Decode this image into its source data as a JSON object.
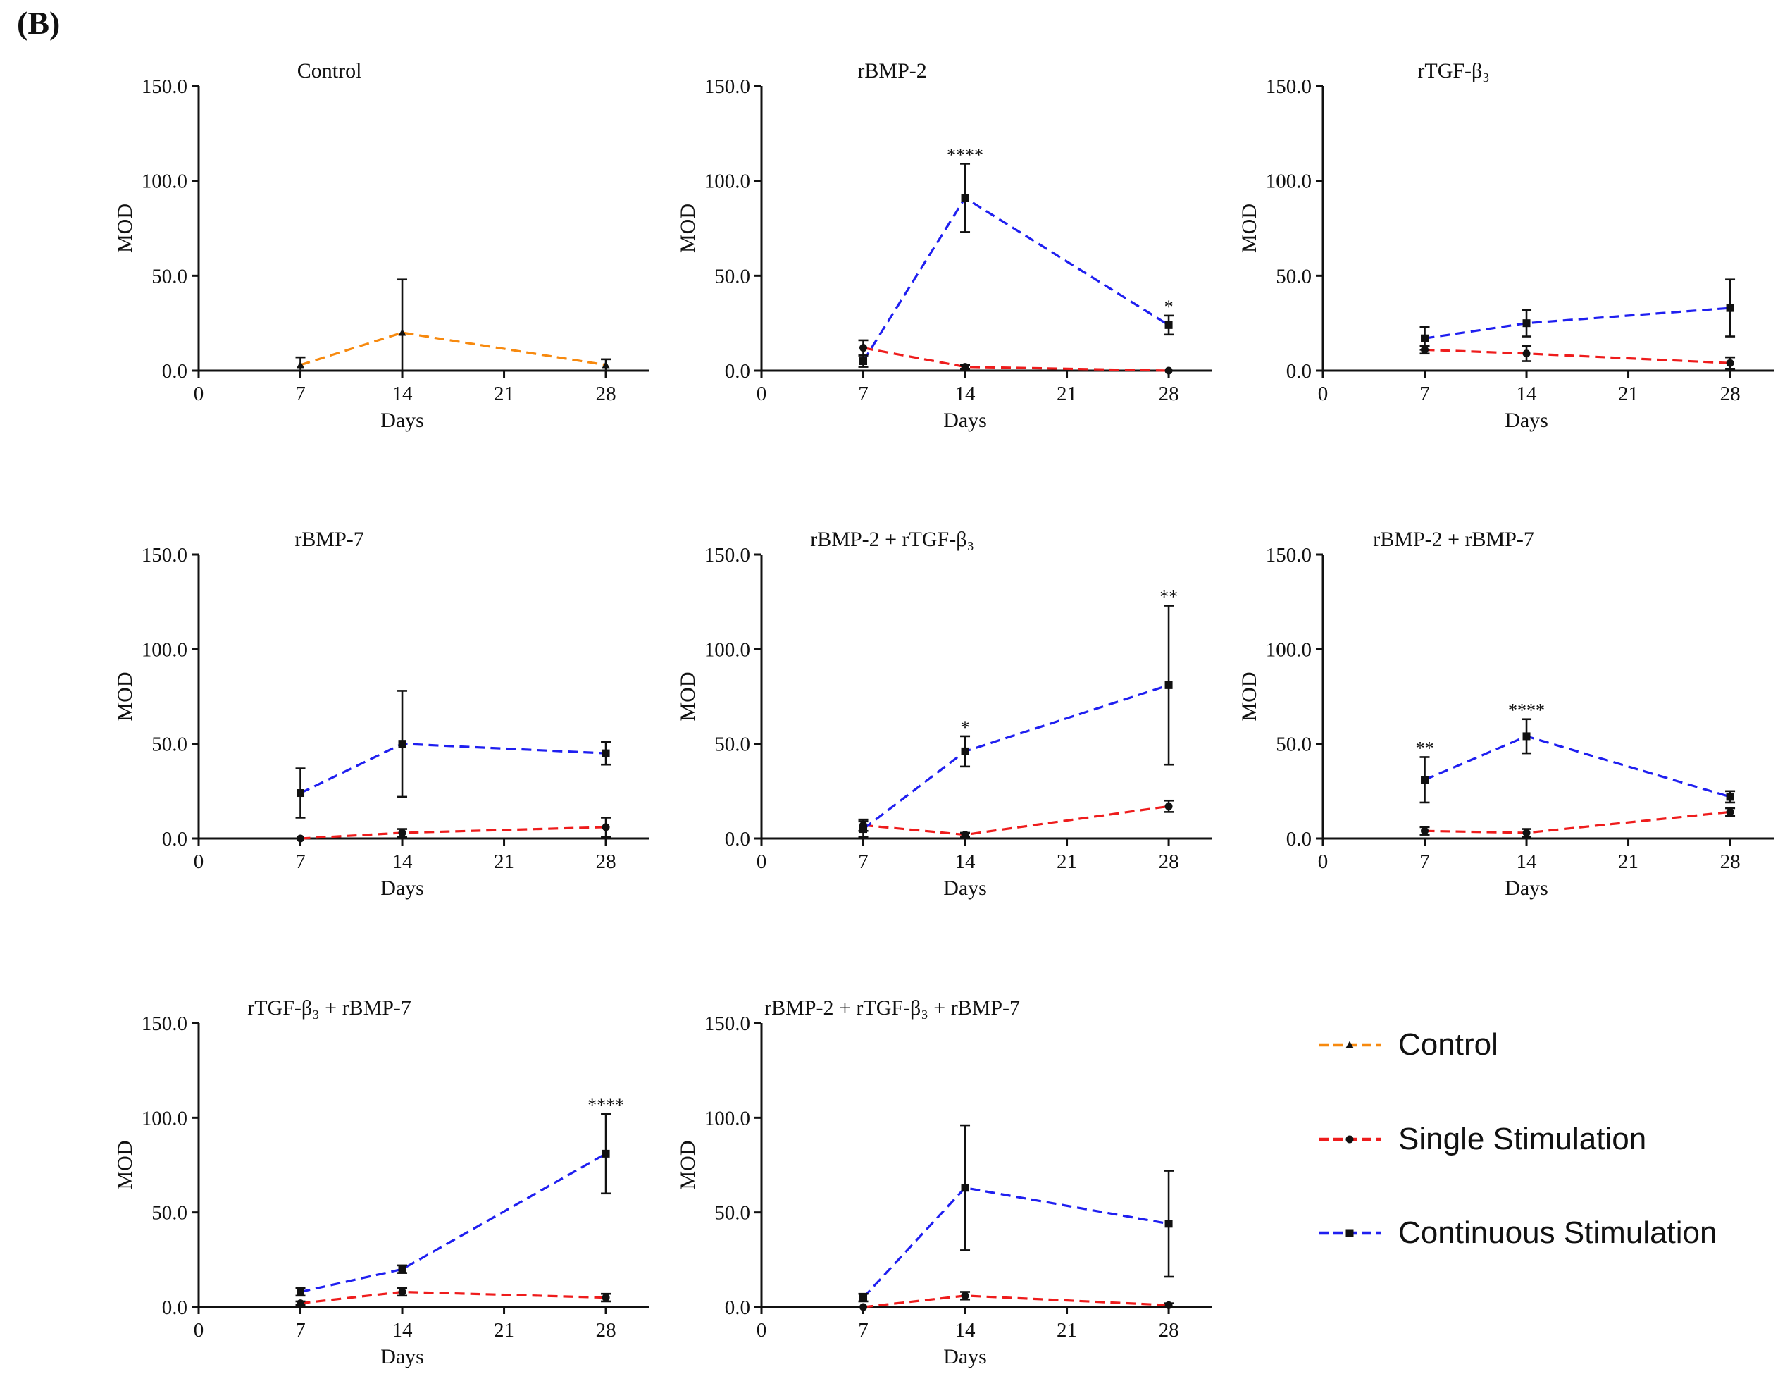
{
  "figure_label": "(B)",
  "colors": {
    "Control": "#f7890e",
    "Single Stimulation": "#ee1c1c",
    "Continuous Stimulation": "#1f1ff0",
    "axis": "#111111"
  },
  "legend": [
    {
      "name": "Control",
      "marker": "triangle"
    },
    {
      "name": "Single Stimulation",
      "marker": "circle"
    },
    {
      "name": "Continuous Stimulation",
      "marker": "square"
    }
  ],
  "chart_data": [
    {
      "type": "line",
      "title": "Control",
      "xlabel": "Days",
      "ylabel": "MOD",
      "xlim": [
        0,
        31
      ],
      "ylim": [
        0,
        150
      ],
      "xticks": [
        "0",
        "7",
        "14",
        "21",
        "28"
      ],
      "yticks": [
        "0.0",
        "50.0",
        "100.0",
        "150.0"
      ],
      "x": [
        7,
        14,
        28
      ],
      "series": [
        {
          "name": "Control",
          "values": [
            3,
            20,
            3
          ],
          "errors": [
            4,
            28,
            3
          ]
        }
      ],
      "annotations": []
    },
    {
      "type": "line",
      "title": "rBMP-2",
      "xlabel": "Days",
      "ylabel": "MOD",
      "xlim": [
        0,
        31
      ],
      "ylim": [
        0,
        150
      ],
      "xticks": [
        "0",
        "7",
        "14",
        "21",
        "28"
      ],
      "yticks": [
        "0.0",
        "50.0",
        "100.0",
        "150.0"
      ],
      "x": [
        7,
        14,
        28
      ],
      "series": [
        {
          "name": "Single Stimulation",
          "values": [
            12,
            2,
            0
          ],
          "errors": [
            4,
            1,
            0
          ]
        },
        {
          "name": "Continuous Stimulation",
          "values": [
            5,
            91,
            24
          ],
          "errors": [
            3,
            18,
            5
          ]
        }
      ],
      "annotations": [
        {
          "x": 14,
          "text": "****"
        },
        {
          "x": 28,
          "text": "*"
        }
      ]
    },
    {
      "type": "line",
      "title": "rTGF-β₃",
      "xlabel": "Days",
      "ylabel": "MOD",
      "xlim": [
        0,
        31
      ],
      "ylim": [
        0,
        150
      ],
      "xticks": [
        "0",
        "7",
        "14",
        "21",
        "28"
      ],
      "yticks": [
        "0.0",
        "50.0",
        "100.0",
        "150.0"
      ],
      "x": [
        7,
        14,
        28
      ],
      "series": [
        {
          "name": "Single Stimulation",
          "values": [
            11,
            9,
            4
          ],
          "errors": [
            2,
            4,
            3
          ]
        },
        {
          "name": "Continuous Stimulation",
          "values": [
            17,
            25,
            33
          ],
          "errors": [
            6,
            7,
            15
          ]
        }
      ],
      "annotations": []
    },
    {
      "type": "line",
      "title": "rBMP-7",
      "xlabel": "Days",
      "ylabel": "MOD",
      "xlim": [
        0,
        31
      ],
      "ylim": [
        0,
        150
      ],
      "xticks": [
        "0",
        "7",
        "14",
        "21",
        "28"
      ],
      "yticks": [
        "0.0",
        "50.0",
        "100.0",
        "150.0"
      ],
      "x": [
        7,
        14,
        28
      ],
      "series": [
        {
          "name": "Single Stimulation",
          "values": [
            0,
            3,
            6
          ],
          "errors": [
            0,
            2,
            5
          ]
        },
        {
          "name": "Continuous Stimulation",
          "values": [
            24,
            50,
            45
          ],
          "errors": [
            13,
            28,
            6
          ]
        }
      ],
      "annotations": []
    },
    {
      "type": "line",
      "title": "rBMP-2 + rTGF-β₃",
      "xlabel": "Days",
      "ylabel": "MOD",
      "xlim": [
        0,
        31
      ],
      "ylim": [
        0,
        150
      ],
      "xticks": [
        "0",
        "7",
        "14",
        "21",
        "28"
      ],
      "yticks": [
        "0.0",
        "50.0",
        "100.0",
        "150.0"
      ],
      "x": [
        7,
        14,
        28
      ],
      "series": [
        {
          "name": "Single Stimulation",
          "values": [
            7,
            2,
            17
          ],
          "errors": [
            3,
            1,
            3
          ]
        },
        {
          "name": "Continuous Stimulation",
          "values": [
            5,
            46,
            81
          ],
          "errors": [
            4,
            8,
            42
          ]
        }
      ],
      "annotations": [
        {
          "x": 14,
          "text": "*"
        },
        {
          "x": 28,
          "text": "**"
        }
      ]
    },
    {
      "type": "line",
      "title": "rBMP-2 + rBMP-7",
      "xlabel": "Days",
      "ylabel": "MOD",
      "xlim": [
        0,
        31
      ],
      "ylim": [
        0,
        150
      ],
      "xticks": [
        "0",
        "7",
        "14",
        "21",
        "28"
      ],
      "yticks": [
        "0.0",
        "50.0",
        "100.0",
        "150.0"
      ],
      "x": [
        7,
        14,
        28
      ],
      "series": [
        {
          "name": "Single Stimulation",
          "values": [
            4,
            3,
            14
          ],
          "errors": [
            2,
            2,
            2
          ]
        },
        {
          "name": "Continuous Stimulation",
          "values": [
            31,
            54,
            22
          ],
          "errors": [
            12,
            9,
            3
          ]
        }
      ],
      "annotations": [
        {
          "x": 7,
          "text": "**"
        },
        {
          "x": 14,
          "text": "****"
        }
      ]
    },
    {
      "type": "line",
      "title": "rTGF-β₃ + rBMP-7",
      "xlabel": "Days",
      "ylabel": "MOD",
      "xlim": [
        0,
        31
      ],
      "ylim": [
        0,
        150
      ],
      "xticks": [
        "0",
        "7",
        "14",
        "21",
        "28"
      ],
      "yticks": [
        "0.0",
        "50.0",
        "100.0",
        "150.0"
      ],
      "x": [
        7,
        14,
        28
      ],
      "series": [
        {
          "name": "Single Stimulation",
          "values": [
            2,
            8,
            5
          ],
          "errors": [
            1,
            2,
            2
          ]
        },
        {
          "name": "Continuous Stimulation",
          "values": [
            8,
            20,
            81
          ],
          "errors": [
            2,
            2,
            21
          ]
        }
      ],
      "annotations": [
        {
          "x": 28,
          "text": "****"
        }
      ]
    },
    {
      "type": "line",
      "title": "rBMP-2 + rTGF-β₃ + rBMP-7",
      "xlabel": "Days",
      "ylabel": "MOD",
      "xlim": [
        0,
        31
      ],
      "ylim": [
        0,
        150
      ],
      "xticks": [
        "0",
        "7",
        "14",
        "21",
        "28"
      ],
      "yticks": [
        "0.0",
        "50.0",
        "100.0",
        "150.0"
      ],
      "x": [
        7,
        14,
        28
      ],
      "series": [
        {
          "name": "Single Stimulation",
          "values": [
            0,
            6,
            1
          ],
          "errors": [
            0,
            2,
            1
          ]
        },
        {
          "name": "Continuous Stimulation",
          "values": [
            5,
            63,
            44
          ],
          "errors": [
            2,
            33,
            28
          ]
        }
      ],
      "annotations": []
    }
  ]
}
